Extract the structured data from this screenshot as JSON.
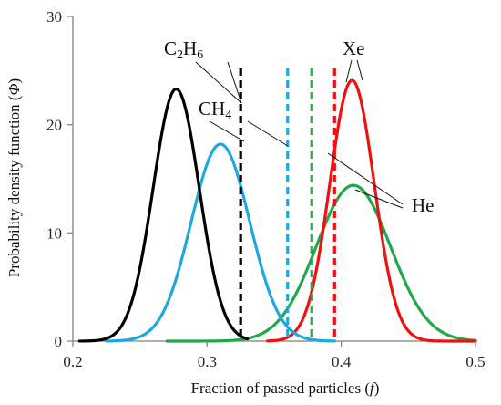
{
  "chart_data": {
    "type": "line",
    "title": "",
    "xlabel": {
      "main": "Fraction of passed particles (",
      "symbol": "f",
      "end": ")"
    },
    "ylabel": {
      "main": "Probability density function (",
      "symbol": "Φ",
      "end": ")"
    },
    "xlim": [
      0.2,
      0.5
    ],
    "ylim": [
      0,
      30
    ],
    "xticks": [
      "0.2",
      "0.3",
      "0.4",
      "0.5"
    ],
    "yticks": [
      "0",
      "10",
      "20",
      "30"
    ],
    "grid": false,
    "legend": "none",
    "series": [
      {
        "name": "C2H6",
        "label_parts": [
          "C",
          "2",
          "H",
          "6"
        ],
        "color": "#000000",
        "mean": 0.277,
        "sd": 0.0172,
        "peak": 23.3,
        "x_range": [
          0.205,
          0.33
        ],
        "threshold": 0.325
      },
      {
        "name": "CH4",
        "label_parts": [
          "CH",
          "4"
        ],
        "color": "#1fa8e0",
        "mean": 0.31,
        "sd": 0.0218,
        "peak": 18.2,
        "x_range": [
          0.225,
          0.395
        ],
        "threshold": 0.36
      },
      {
        "name": "He",
        "label_parts": [
          "He"
        ],
        "color": "#20a84a",
        "mean": 0.409,
        "sd": 0.0277,
        "peak": 14.4,
        "x_range": [
          0.27,
          0.5
        ],
        "threshold": 0.378
      },
      {
        "name": "Xe",
        "label_parts": [
          "Xe"
        ],
        "color": "#ee1111",
        "mean": 0.408,
        "sd": 0.0165,
        "peak": 24.1,
        "x_range": [
          0.345,
          0.5
        ],
        "threshold": 0.395
      }
    ]
  }
}
